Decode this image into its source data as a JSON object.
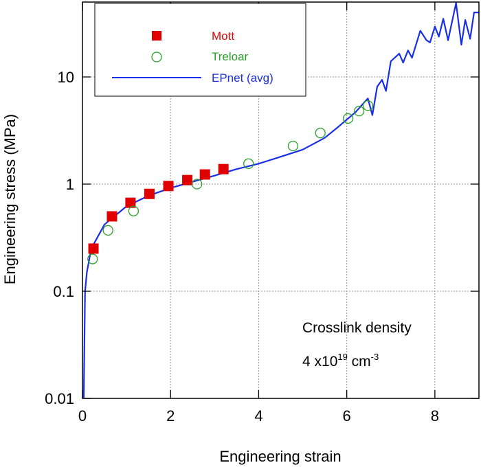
{
  "chart_data": {
    "type": "scatter",
    "xlabel": "Engineering strain",
    "ylabel": "Engineering stress (MPa)",
    "xlim": [
      0,
      9
    ],
    "ylim": [
      0.01,
      50
    ],
    "yscale": "log",
    "grid": true,
    "legend_placement": "top-left",
    "xticks": [
      0,
      2,
      4,
      6,
      8
    ],
    "xtick_labels": [
      "0",
      "2",
      "4",
      "6",
      "8"
    ],
    "yticks": [
      0.01,
      0.1,
      1,
      10
    ],
    "ytick_labels": [
      "0.01",
      "0.1",
      "1",
      "10"
    ],
    "annotation": {
      "line1": "Crosslink density",
      "line2_base": "4 x10",
      "line2_exp": "19",
      "line2_unit": " cm",
      "line2_unit_exp": "-3"
    },
    "series": [
      {
        "name": "Mott",
        "marker": "square",
        "color": "#e00000",
        "x": [
          0.25,
          0.67,
          1.09,
          1.52,
          1.95,
          2.38,
          2.78,
          3.2
        ],
        "y": [
          0.25,
          0.5,
          0.67,
          0.81,
          0.96,
          1.09,
          1.23,
          1.38
        ]
      },
      {
        "name": "Treloar",
        "marker": "open-circle",
        "color": "#2aa02a",
        "x": [
          0.23,
          0.58,
          1.16,
          2.6,
          3.77,
          4.78,
          5.4,
          6.03,
          6.28,
          6.48
        ],
        "y": [
          0.2,
          0.37,
          0.56,
          1.0,
          1.55,
          2.27,
          3.0,
          4.1,
          4.8,
          5.4
        ]
      },
      {
        "name": "EPnet (avg)",
        "marker": "line",
        "color": "#1a2ee6",
        "x": [
          0.03,
          0.06,
          0.1,
          0.2,
          0.5,
          1,
          1.5,
          2,
          2.5,
          3,
          3.5,
          4,
          4.5,
          5,
          5.5,
          5.8,
          6.0,
          6.2,
          6.4,
          6.48,
          6.58,
          6.69,
          6.8,
          6.89,
          7.0,
          7.19,
          7.28,
          7.39,
          7.48,
          7.67,
          7.81,
          7.89,
          8.0,
          8.09,
          8.19,
          8.3,
          8.48,
          8.6,
          8.69,
          8.8,
          8.89,
          9.0
        ],
        "y": [
          0.01,
          0.1,
          0.15,
          0.25,
          0.42,
          0.62,
          0.78,
          0.92,
          1.05,
          1.2,
          1.38,
          1.55,
          1.8,
          2.1,
          2.7,
          3.4,
          4.0,
          4.7,
          5.8,
          6.3,
          4.4,
          8.1,
          9.4,
          7.4,
          14,
          16.5,
          13.6,
          17.7,
          15.1,
          27,
          22,
          21,
          29.5,
          23.8,
          35,
          22,
          49,
          20,
          34,
          22.7,
          40,
          40
        ]
      }
    ]
  }
}
